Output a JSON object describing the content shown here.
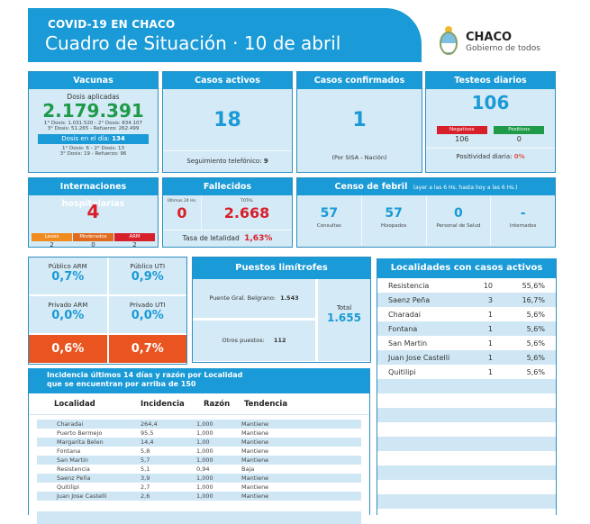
{
  "header": {
    "kicker": "COVID-19 EN CHACO",
    "title": "Cuadro de Situación · 10 de abril",
    "logo_name": "CHACO",
    "logo_sub": "Gobierno de todos",
    "logo_icon": "provincial-shield-icon"
  },
  "colors": {
    "primary_blue": "#1a9ad6",
    "card_bg": "#d4eaf6",
    "green": "#1e9a48",
    "red": "#d7202a",
    "orange": "#e95420",
    "light_orange": "#f08c1f",
    "mid_orange": "#e06a1e"
  },
  "vacunas": {
    "title": "Vacunas",
    "subtitle": "Dosis aplicadas",
    "total": "2.179.391",
    "line1": "1° Dosis: 1.031.520  -  2° Dosis: 834.107",
    "line2": "3° Dosis: 51.265  -  Refuerzo: 262.499",
    "day_label": "Dosis en el día:",
    "day_value": "134",
    "day_line1": "1° Dosis: 6  -  2° Dosis: 13",
    "day_line2": "3° Dosis: 19  -  Refuerzo: 96"
  },
  "casos_activos": {
    "title": "Casos activos",
    "value": "18",
    "footer_label": "Seguimiento telefónico:",
    "footer_value": "9"
  },
  "casos_confirmados": {
    "title": "Casos confirmados",
    "value": "1",
    "footer": "(Por SISA - Nación)"
  },
  "testeos": {
    "title": "Testeos diarios",
    "value": "106",
    "negativos_label": "Negativos",
    "negativos_value": "106",
    "positivos_label": "Positivos",
    "positivos_value": "0",
    "positividad_label": "Positividad diaria:",
    "positividad_value": "0%"
  },
  "internaciones": {
    "title": "Internaciones hospitalarias",
    "value": "4",
    "categories": [
      {
        "label": "Leves",
        "value": "2"
      },
      {
        "label": "Moderados",
        "value": "0"
      },
      {
        "label": "ARM",
        "value": "2"
      }
    ]
  },
  "fallecidos": {
    "title": "Fallecidos",
    "last24_label": "Últimas 24 Hs.",
    "last24_value": "0",
    "total_label": "TOTAL",
    "total_value": "2.668",
    "letalidad_label": "Tasa de letalidad",
    "letalidad_value": "1,63%"
  },
  "censo": {
    "title": "Censo de febril",
    "title_note": "(ayer a las 6 Hs. hasta hoy a las 6 Hs.)",
    "items": [
      {
        "value": "57",
        "label": "Consultas"
      },
      {
        "value": "57",
        "label": "Hisopados"
      },
      {
        "value": "0",
        "label": "Personal de Salud"
      },
      {
        "value": "-",
        "label": "Internados"
      }
    ]
  },
  "ocupacion": {
    "cells": [
      {
        "label": "Público ARM",
        "value": "0,7%"
      },
      {
        "label": "Público UTI",
        "value": "0,9%"
      },
      {
        "label": "Privado ARM",
        "value": "0,0%"
      },
      {
        "label": "Privado UTI",
        "value": "0,0%"
      }
    ],
    "totals": [
      "0,6%",
      "0,7%"
    ]
  },
  "puestos": {
    "title": "Puestos limítrofes",
    "belgrano_label": "Puente Gral. Belgrano:",
    "belgrano_value": "1.543",
    "otros_label": "Otros puestos:",
    "otros_value": "112",
    "total_label": "Total",
    "total_value": "1.655"
  },
  "localidades": {
    "title": "Localidades con casos activos",
    "rows": [
      {
        "name": "Resistencia",
        "cases": "10",
        "pct": "55,6%"
      },
      {
        "name": "Saenz Peña",
        "cases": "3",
        "pct": "16,7%"
      },
      {
        "name": "Charadai",
        "cases": "1",
        "pct": "5,6%"
      },
      {
        "name": "Fontana",
        "cases": "1",
        "pct": "5,6%"
      },
      {
        "name": "San Martin",
        "cases": "1",
        "pct": "5,6%"
      },
      {
        "name": "Juan Jose Castelli",
        "cases": "1",
        "pct": "5,6%"
      },
      {
        "name": "Quitilipi",
        "cases": "1",
        "pct": "5,6%"
      }
    ]
  },
  "incidencia": {
    "title_line1": "Incidencia últimos 14 días y razón por Localidad",
    "title_line2": "que se encuentran por arriba de 150",
    "columns": [
      "Localidad",
      "Incidencia",
      "Razón",
      "Tendencia"
    ],
    "rows": [
      {
        "localidad": "Charadai",
        "incidencia": "264,4",
        "razon": "1,000",
        "tendencia": "Mantiene"
      },
      {
        "localidad": "Puerto Bermejo",
        "incidencia": "95,5",
        "razon": "1,000",
        "tendencia": "Mantiene"
      },
      {
        "localidad": "Margarita Belen",
        "incidencia": "14,4",
        "razon": "1,00",
        "tendencia": "Mantiene"
      },
      {
        "localidad": "Fontana",
        "incidencia": "5,8",
        "razon": "1,000",
        "tendencia": "Mantiene"
      },
      {
        "localidad": "San Martin",
        "incidencia": "5,7",
        "razon": "1,000",
        "tendencia": "Mantiene"
      },
      {
        "localidad": "Resistencia",
        "incidencia": "5,1",
        "razon": "0,94",
        "tendencia": "Baja"
      },
      {
        "localidad": "Saenz Peña",
        "incidencia": "3,9",
        "razon": "1,000",
        "tendencia": "Mantiene"
      },
      {
        "localidad": "Quitilipi",
        "incidencia": "2,7",
        "razon": "1,000",
        "tendencia": "Mantiene"
      },
      {
        "localidad": "Juan Jose Castelli",
        "incidencia": "2,6",
        "razon": "1,000",
        "tendencia": "Mantiene"
      }
    ]
  }
}
